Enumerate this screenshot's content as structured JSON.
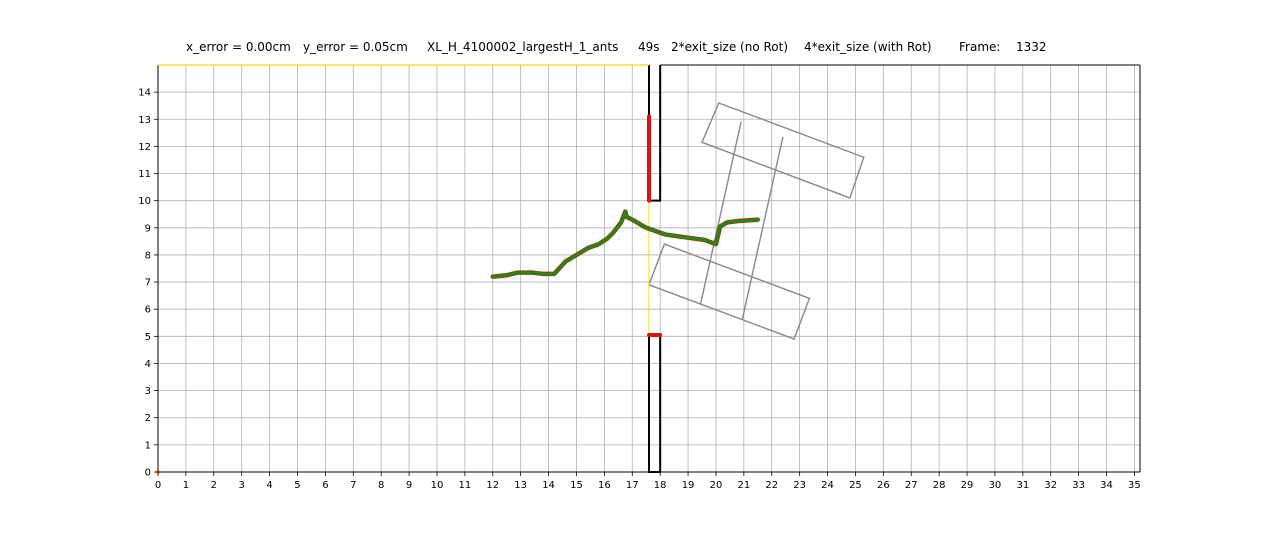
{
  "chart_data": {
    "type": "line",
    "title_parts": [
      "x_error = 0.00cm",
      "y_error = 0.05cm",
      "XL_H_4100002_largestH_1_ants",
      "49s",
      "2*exit_size  (no Rot)",
      "4*exit_size  (with Rot)",
      "Frame:",
      "1332"
    ],
    "xlim": [
      0,
      35.2
    ],
    "ylim": [
      0,
      15
    ],
    "x_ticks": [
      0,
      1,
      2,
      3,
      4,
      5,
      6,
      7,
      8,
      9,
      10,
      11,
      12,
      13,
      14,
      15,
      16,
      17,
      18,
      19,
      20,
      21,
      22,
      23,
      24,
      25,
      26,
      27,
      28,
      29,
      30,
      31,
      32,
      33,
      34,
      35
    ],
    "y_ticks": [
      0,
      1,
      2,
      3,
      4,
      5,
      6,
      7,
      8,
      9,
      10,
      11,
      12,
      13,
      14
    ],
    "grid": true,
    "walls": {
      "color": "#000000",
      "upper_slit": [
        [
          17.6,
          15
        ],
        [
          17.6,
          10
        ],
        [
          18.0,
          10
        ],
        [
          18.0,
          15
        ]
      ],
      "lower_slit": [
        [
          17.6,
          5.05
        ],
        [
          17.6,
          0
        ],
        [
          18.0,
          0
        ],
        [
          18.0,
          5.05
        ]
      ]
    },
    "exit_line": {
      "color": "#ffd700",
      "x": 17.6,
      "y": [
        5.05,
        10
      ]
    },
    "top_border_color": "#ffd700",
    "red_segments": {
      "color": "#dd1111",
      "upper": [
        [
          17.6,
          10.0
        ],
        [
          17.6,
          13.1
        ]
      ],
      "lower": [
        [
          17.6,
          5.05
        ],
        [
          18.0,
          5.05
        ]
      ]
    },
    "shape": {
      "color": "#888888",
      "polygons": [
        [
          [
            20.1,
            13.6
          ],
          [
            25.3,
            11.6
          ],
          [
            24.8,
            10.1
          ],
          [
            19.5,
            12.15
          ]
        ],
        [
          [
            17.6,
            6.9
          ],
          [
            18.15,
            8.4
          ],
          [
            23.35,
            6.4
          ],
          [
            22.8,
            4.9
          ]
        ],
        [
          [
            20.9,
            12.9
          ],
          [
            19.45,
            6.2
          ]
        ],
        [
          [
            22.4,
            12.35
          ],
          [
            20.95,
            5.65
          ]
        ]
      ]
    },
    "trajectory": {
      "color": "#1a8a1a",
      "marker_color": "#cc2200",
      "x": [
        12.0,
        12.5,
        12.9,
        13.4,
        13.8,
        14.2,
        14.6,
        15.0,
        15.4,
        15.8,
        16.1,
        16.3,
        16.6,
        16.75,
        16.8,
        17.0,
        17.5,
        18.2,
        18.9,
        19.6,
        20.0,
        20.15,
        20.4,
        20.8,
        21.5
      ],
      "y": [
        7.2,
        7.25,
        7.35,
        7.35,
        7.3,
        7.3,
        7.75,
        8.0,
        8.25,
        8.4,
        8.6,
        8.8,
        9.2,
        9.6,
        9.4,
        9.3,
        9.0,
        8.75,
        8.65,
        8.55,
        8.4,
        9.05,
        9.2,
        9.25,
        9.3
      ]
    }
  }
}
